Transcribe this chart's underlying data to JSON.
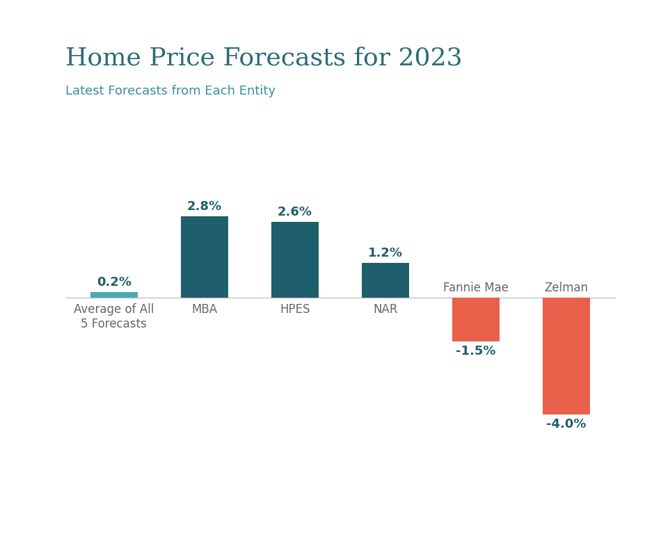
{
  "title": "Home Price Forecasts for 2023",
  "subtitle": "Latest Forecasts from Each Entity",
  "categories": [
    "Average of All\n5 Forecasts",
    "MBA",
    "HPES",
    "NAR",
    "Fannie Mae",
    "Zelman"
  ],
  "values": [
    0.2,
    2.8,
    2.6,
    1.2,
    -1.5,
    -4.0
  ],
  "labels": [
    "0.2%",
    "2.8%",
    "2.6%",
    "1.2%",
    "-1.5%",
    "-4.0%"
  ],
  "bar_colors": [
    "#4AABB5",
    "#1F5F6B",
    "#1F5F6B",
    "#1F5F6B",
    "#E8604A",
    "#E8604A"
  ],
  "title_color": "#2E6B7A",
  "subtitle_color": "#3A8EA0",
  "label_color": "#1F5F6B",
  "background_color": "#FFFFFF",
  "title_fontsize": 26,
  "subtitle_fontsize": 13,
  "label_fontsize": 13,
  "tick_label_fontsize": 12,
  "ylim": [
    -5.2,
    4.2
  ],
  "bar_width": 0.52
}
